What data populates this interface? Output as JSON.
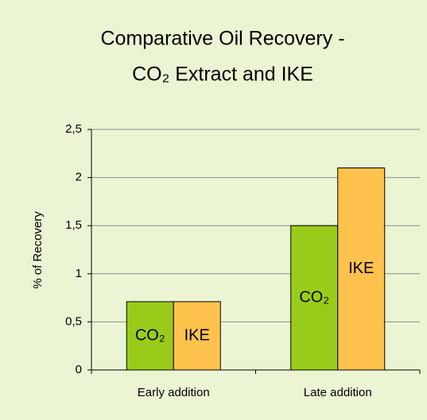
{
  "chart_data": {
    "type": "bar",
    "title": [
      "Comparative Oil Recovery -",
      "CO₂ Extract and IKE"
    ],
    "ylabel": "% of Recovery",
    "categories": [
      "Early addition",
      "Late addition"
    ],
    "series": [
      {
        "name": "CO₂",
        "color": "#99cc1a",
        "values": [
          0.71,
          1.5
        ]
      },
      {
        "name": "IKE",
        "color": "#ffc24d",
        "values": [
          0.71,
          2.1
        ]
      }
    ],
    "ylim": [
      0,
      2.5
    ],
    "yticks": [
      0,
      {
        "value": 0.5,
        "label": "0,5"
      },
      1,
      {
        "value": 1.5,
        "label": "1,5"
      },
      2,
      {
        "value": 2.5,
        "label": "2,5"
      }
    ],
    "grid": true
  }
}
